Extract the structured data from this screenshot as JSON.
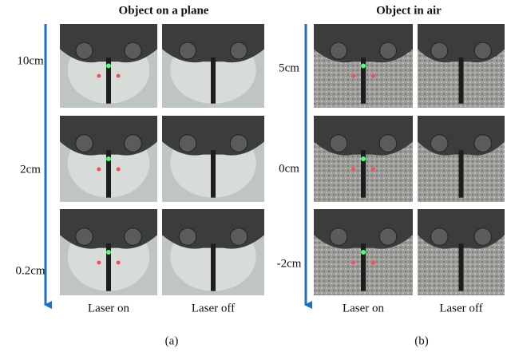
{
  "panels": [
    {
      "title": "Object on a plane",
      "rows": [
        "10cm",
        "2cm",
        "0.2cm"
      ],
      "columns": [
        "Laser on",
        "Laser off"
      ],
      "caption": "(a)"
    },
    {
      "title": "Object in air",
      "rows": [
        "5cm",
        "0cm",
        "-2cm"
      ],
      "columns": [
        "Laser on",
        "Laser off"
      ],
      "caption": "(b)"
    }
  ]
}
